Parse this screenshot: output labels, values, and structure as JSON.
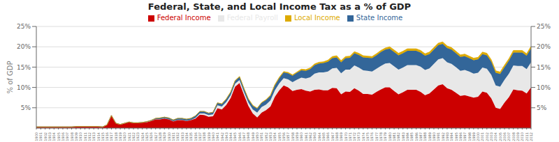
{
  "chart_data": {
    "type": "area",
    "title": "Federal, State, and Local Income Tax as a % of GDP",
    "ylabel": "% of GDP",
    "stacked": true,
    "grid": true,
    "legend": "top",
    "x": [
      1900,
      1901,
      1902,
      1903,
      1904,
      1905,
      1906,
      1907,
      1908,
      1909,
      1910,
      1911,
      1912,
      1913,
      1914,
      1915,
      1916,
      1917,
      1918,
      1919,
      1920,
      1921,
      1922,
      1923,
      1924,
      1925,
      1926,
      1927,
      1928,
      1929,
      1930,
      1931,
      1932,
      1933,
      1934,
      1935,
      1936,
      1937,
      1938,
      1939,
      1940,
      1941,
      1942,
      1943,
      1944,
      1945,
      1946,
      1947,
      1948,
      1949,
      1950,
      1951,
      1952,
      1953,
      1954,
      1955,
      1956,
      1957,
      1958,
      1959,
      1960,
      1961,
      1962,
      1963,
      1964,
      1965,
      1966,
      1967,
      1968,
      1969,
      1970,
      1971,
      1972,
      1973,
      1974,
      1975,
      1976,
      1977,
      1978,
      1979,
      1980,
      1981,
      1982,
      1983,
      1984,
      1985,
      1986,
      1987,
      1988,
      1989,
      1990,
      1991,
      1992,
      1993,
      1994,
      1995,
      1996,
      1997,
      1998,
      1999,
      2000,
      2001,
      2002,
      2003,
      2004,
      2005,
      2006,
      2007,
      2008,
      2009,
      2010,
      2011,
      2012
    ],
    "xlim": [
      1900,
      2012
    ],
    "xticks": [
      1900,
      1901,
      1902,
      1903,
      1904,
      1905,
      1906,
      1907,
      1908,
      1909,
      1910,
      1911,
      1912,
      1913,
      1914,
      1915,
      1916,
      1917,
      1918,
      1919,
      1920,
      1921,
      1922,
      1923,
      1924,
      1925,
      1926,
      1927,
      1928,
      1929,
      1930,
      1931,
      1932,
      1933,
      1934,
      1935,
      1936,
      1937,
      1938,
      1939,
      1940,
      1941,
      1942,
      1943,
      1944,
      1945,
      1946,
      1947,
      1948,
      1949,
      1950,
      1951,
      1952,
      1953,
      1954,
      1955,
      1956,
      1957,
      1958,
      1959,
      1960,
      1961,
      1962,
      1963,
      1964,
      1965,
      1966,
      1967,
      1968,
      1969,
      1970,
      1971,
      1972,
      1973,
      1974,
      1975,
      1976,
      1977,
      1978,
      1979,
      1980,
      1981,
      1982,
      1983,
      1984,
      1985,
      1986,
      1987,
      1988,
      1989,
      1990,
      1991,
      1992,
      1993,
      1994,
      1995,
      1996,
      1997,
      1998,
      1999,
      2000,
      2001,
      2002,
      2003,
      2004,
      2005,
      2006,
      2007,
      2008,
      2009,
      2010,
      2011,
      2012
    ],
    "ylim": [
      0,
      25
    ],
    "yticks": [
      {
        "value": 5,
        "label": "5%"
      },
      {
        "value": 10,
        "label": "10%"
      },
      {
        "value": 15,
        "label": "15%"
      },
      {
        "value": 20,
        "label": "20%"
      },
      {
        "value": 25,
        "label": "25%"
      }
    ],
    "y2lim": [
      0,
      25
    ],
    "y2ticks": [
      {
        "value": 5,
        "label": "5%"
      },
      {
        "value": 10,
        "label": "10%"
      },
      {
        "value": 15,
        "label": "15%"
      },
      {
        "value": 20,
        "label": "20%"
      },
      {
        "value": 25,
        "label": "25%"
      }
    ],
    "series": [
      {
        "name": "Federal Income",
        "color": "#cc0000",
        "values": [
          0.3,
          0.3,
          0.3,
          0.3,
          0.3,
          0.3,
          0.3,
          0.3,
          0.3,
          0.4,
          0.4,
          0.4,
          0.4,
          0.4,
          0.4,
          0.3,
          0.8,
          3.1,
          1.2,
          0.9,
          1.2,
          1.5,
          1.3,
          1.3,
          1.4,
          1.5,
          1.8,
          2.2,
          2.2,
          2.4,
          2.2,
          1.7,
          2.0,
          2.0,
          1.8,
          2.0,
          2.3,
          3.3,
          3.2,
          2.8,
          2.9,
          4.9,
          4.6,
          5.7,
          7.4,
          10.2,
          11.1,
          8.2,
          5.5,
          3.6,
          2.6,
          3.8,
          4.4,
          5.3,
          7.7,
          9.3,
          10.5,
          10.0,
          9.1,
          9.4,
          9.6,
          9.2,
          9.0,
          9.4,
          9.5,
          9.3,
          9.3,
          9.9,
          9.8,
          8.3,
          9.0,
          8.9,
          9.8,
          9.2,
          8.4,
          8.4,
          8.2,
          8.9,
          9.5,
          10.0,
          10.0,
          9.1,
          8.3,
          8.8,
          9.4,
          9.4,
          9.4,
          8.9,
          8.1,
          8.5,
          9.5,
          10.5,
          10.8,
          9.8,
          9.4,
          8.7,
          7.9,
          8.1,
          7.8,
          7.5,
          7.7,
          9.0,
          8.7,
          7.3,
          5.0,
          4.7,
          6.3,
          7.6,
          9.5,
          9.3,
          9.2,
          8.5,
          10.0
        ]
      },
      {
        "name": "Federal Payroll",
        "color": "#e8e8e8",
        "values": [
          0.0,
          0.0,
          0.0,
          0.0,
          0.0,
          0.0,
          0.0,
          0.0,
          0.0,
          0.0,
          0.0,
          0.0,
          0.0,
          0.0,
          0.0,
          0.0,
          0.0,
          0.0,
          0.0,
          0.0,
          0.0,
          0.0,
          0.0,
          0.0,
          0.0,
          0.0,
          0.0,
          0.0,
          0.0,
          0.0,
          0.0,
          0.0,
          0.0,
          0.0,
          0.0,
          0.0,
          0.2,
          0.3,
          0.4,
          0.4,
          0.5,
          0.7,
          0.7,
          0.7,
          0.7,
          0.7,
          0.7,
          0.7,
          0.8,
          1.0,
          1.2,
          1.4,
          1.4,
          1.5,
          1.6,
          1.7,
          1.8,
          2.0,
          2.2,
          2.5,
          2.8,
          3.0,
          3.5,
          4.0,
          4.2,
          4.4,
          4.6,
          4.8,
          5.0,
          5.2,
          5.4,
          5.5,
          5.6,
          5.7,
          5.8,
          5.7,
          5.7,
          5.7,
          5.8,
          5.9,
          6.0,
          6.1,
          6.1,
          6.1,
          6.1,
          6.1,
          6.1,
          6.2,
          6.2,
          6.2,
          6.3,
          6.4,
          6.4,
          6.4,
          6.4,
          6.3,
          6.2,
          6.2,
          6.1,
          5.9,
          5.9,
          5.9,
          5.9,
          5.8,
          5.5,
          5.5,
          5.6,
          5.8,
          5.9,
          6.0,
          6.1,
          6.0,
          6.2
        ]
      },
      {
        "name": "State Income",
        "color": "#336699",
        "values": [
          0.0,
          0.0,
          0.0,
          0.0,
          0.0,
          0.0,
          0.0,
          0.0,
          0.0,
          0.0,
          0.0,
          0.0,
          0.0,
          0.0,
          0.0,
          0.0,
          0.0,
          0.0,
          0.0,
          0.0,
          0.0,
          0.0,
          0.0,
          0.0,
          0.0,
          0.1,
          0.1,
          0.2,
          0.3,
          0.3,
          0.3,
          0.3,
          0.4,
          0.4,
          0.4,
          0.4,
          0.5,
          0.5,
          0.5,
          0.5,
          0.5,
          0.6,
          0.6,
          0.7,
          0.7,
          0.7,
          0.8,
          0.8,
          0.8,
          0.9,
          1.0,
          1.0,
          1.1,
          1.1,
          1.2,
          1.3,
          1.4,
          1.5,
          1.6,
          1.7,
          1.8,
          1.9,
          2.0,
          2.1,
          2.2,
          2.3,
          2.4,
          2.5,
          2.6,
          2.7,
          2.8,
          2.9,
          3.0,
          3.1,
          3.2,
          3.2,
          3.3,
          3.3,
          3.4,
          3.4,
          3.5,
          3.5,
          3.5,
          3.5,
          3.5,
          3.5,
          3.5,
          3.5,
          3.5,
          3.5,
          3.5,
          3.5,
          3.5,
          3.5,
          3.5,
          3.4,
          3.4,
          3.4,
          3.3,
          3.3,
          3.3,
          3.3,
          3.3,
          3.2,
          3.1,
          3.1,
          3.1,
          3.2,
          3.2,
          3.3,
          3.3,
          3.3,
          3.4
        ]
      },
      {
        "name": "Local Income",
        "color": "#ddaa00",
        "values": [
          0.0,
          0.0,
          0.0,
          0.0,
          0.0,
          0.0,
          0.0,
          0.0,
          0.0,
          0.0,
          0.0,
          0.0,
          0.0,
          0.0,
          0.0,
          0.0,
          0.0,
          0.0,
          0.0,
          0.0,
          0.0,
          0.0,
          0.0,
          0.0,
          0.0,
          0.0,
          0.0,
          0.0,
          0.0,
          0.0,
          0.0,
          0.0,
          0.0,
          0.0,
          0.0,
          0.0,
          0.0,
          0.0,
          0.0,
          0.0,
          0.0,
          0.0,
          0.1,
          0.1,
          0.1,
          0.1,
          0.1,
          0.1,
          0.1,
          0.1,
          0.1,
          0.1,
          0.1,
          0.2,
          0.2,
          0.2,
          0.2,
          0.2,
          0.2,
          0.2,
          0.3,
          0.3,
          0.3,
          0.3,
          0.3,
          0.3,
          0.4,
          0.4,
          0.4,
          0.4,
          0.4,
          0.4,
          0.4,
          0.4,
          0.4,
          0.4,
          0.4,
          0.4,
          0.4,
          0.4,
          0.5,
          0.5,
          0.5,
          0.5,
          0.5,
          0.5,
          0.5,
          0.5,
          0.5,
          0.5,
          0.5,
          0.5,
          0.5,
          0.5,
          0.5,
          0.5,
          0.5,
          0.5,
          0.5,
          0.5,
          0.5,
          0.5,
          0.5,
          0.5,
          0.5,
          0.5,
          0.5,
          0.5,
          0.5,
          0.5,
          0.5,
          0.5,
          0.5
        ]
      }
    ]
  }
}
